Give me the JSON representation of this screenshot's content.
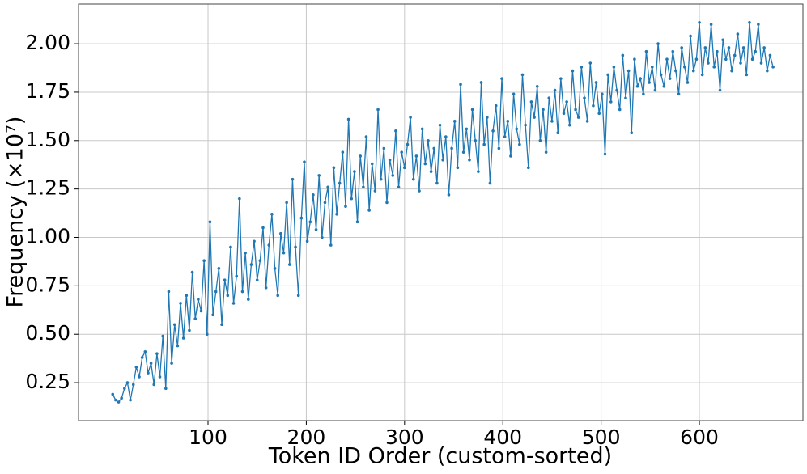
{
  "chart_data": {
    "type": "line",
    "xlabel": "Token ID Order (custom-sorted)",
    "ylabel": "Frequency (×10⁷)",
    "color": "#1f77b4",
    "grid": true,
    "markers": true,
    "xlim": [
      -31.8,
      705.4
    ],
    "ylim": [
      0.054,
      2.205
    ],
    "xticks": [
      100,
      200,
      300,
      400,
      500,
      600
    ],
    "yticks": [
      0.25,
      {
        "value": 0.5,
        "label": "0.50"
      },
      0.75,
      {
        "value": 1,
        "label": "1.00"
      },
      1.25,
      {
        "value": 1.5,
        "label": "1.50"
      },
      1.75,
      {
        "value": 2,
        "label": "2.00"
      }
    ],
    "x": [
      3,
      6,
      9,
      12,
      15,
      18,
      21,
      24,
      27,
      30,
      33,
      36,
      39,
      42,
      45,
      48,
      51,
      54,
      57,
      60,
      63,
      66,
      69,
      72,
      75,
      78,
      81,
      84,
      87,
      90,
      93,
      96,
      99,
      102,
      105,
      108,
      111,
      114,
      117,
      120,
      123,
      126,
      129,
      132,
      135,
      138,
      141,
      144,
      147,
      150,
      153,
      156,
      159,
      162,
      165,
      168,
      171,
      174,
      177,
      180,
      183,
      186,
      189,
      192,
      195,
      198,
      201,
      204,
      207,
      210,
      213,
      216,
      219,
      222,
      225,
      228,
      231,
      234,
      237,
      240,
      243,
      246,
      249,
      252,
      255,
      258,
      261,
      264,
      267,
      270,
      273,
      276,
      279,
      282,
      285,
      288,
      291,
      294,
      297,
      300,
      303,
      306,
      309,
      312,
      315,
      318,
      321,
      324,
      327,
      330,
      333,
      336,
      339,
      342,
      345,
      348,
      351,
      354,
      357,
      360,
      363,
      366,
      369,
      372,
      375,
      378,
      381,
      384,
      387,
      390,
      393,
      396,
      399,
      402,
      405,
      408,
      411,
      414,
      417,
      420,
      423,
      426,
      429,
      432,
      435,
      438,
      441,
      444,
      447,
      450,
      453,
      456,
      459,
      462,
      465,
      468,
      471,
      474,
      477,
      480,
      483,
      486,
      489,
      492,
      495,
      498,
      501,
      504,
      507,
      510,
      513,
      516,
      519,
      522,
      525,
      528,
      531,
      534,
      537,
      540,
      543,
      546,
      549,
      552,
      555,
      558,
      561,
      564,
      567,
      570,
      573,
      576,
      579,
      582,
      585,
      588,
      591,
      594,
      597,
      600,
      603,
      606,
      609,
      612,
      615,
      618,
      621,
      624,
      627,
      630,
      633,
      636,
      639,
      642,
      645,
      648,
      651,
      654,
      657,
      660,
      663,
      666,
      669,
      672,
      675
    ],
    "values": [
      0.19,
      0.16,
      0.15,
      0.17,
      0.22,
      0.25,
      0.16,
      0.24,
      0.33,
      0.28,
      0.38,
      0.41,
      0.3,
      0.35,
      0.24,
      0.4,
      0.28,
      0.49,
      0.22,
      0.72,
      0.35,
      0.55,
      0.44,
      0.66,
      0.48,
      0.7,
      0.52,
      0.82,
      0.58,
      0.68,
      0.62,
      0.88,
      0.5,
      1.08,
      0.6,
      0.72,
      0.84,
      0.55,
      0.78,
      0.7,
      0.95,
      0.66,
      0.8,
      1.2,
      0.72,
      0.92,
      0.68,
      0.86,
      0.98,
      0.78,
      0.88,
      1.05,
      0.74,
      0.96,
      1.12,
      0.84,
      0.7,
      1.02,
      0.92,
      1.18,
      0.86,
      1.3,
      0.95,
      0.7,
      1.1,
      1.39,
      0.98,
      1.08,
      1.22,
      1.04,
      1.32,
      1.0,
      1.18,
      1.26,
      0.96,
      1.36,
      1.12,
      1.28,
      1.44,
      1.16,
      1.61,
      1.2,
      1.34,
      1.08,
      1.42,
      1.26,
      1.52,
      1.14,
      1.38,
      1.24,
      1.66,
      1.3,
      1.46,
      1.18,
      1.4,
      1.32,
      1.55,
      1.26,
      1.44,
      1.36,
      1.48,
      1.62,
      1.3,
      1.42,
      1.24,
      1.56,
      1.38,
      1.5,
      1.34,
      1.46,
      1.28,
      1.58,
      1.4,
      1.52,
      1.22,
      1.46,
      1.6,
      1.36,
      1.79,
      1.44,
      1.56,
      1.4,
      1.66,
      1.5,
      1.34,
      1.8,
      1.48,
      1.62,
      1.28,
      1.55,
      1.68,
      1.46,
      1.82,
      1.52,
      1.6,
      1.42,
      1.74,
      1.56,
      1.48,
      1.84,
      1.58,
      1.36,
      1.7,
      1.62,
      1.78,
      1.5,
      1.66,
      1.44,
      1.72,
      1.6,
      1.76,
      1.54,
      1.82,
      1.64,
      1.7,
      1.58,
      1.86,
      1.66,
      1.62,
      1.88,
      1.72,
      1.6,
      1.9,
      1.68,
      1.8,
      1.64,
      1.74,
      1.43,
      1.84,
      1.7,
      1.88,
      1.76,
      1.66,
      1.94,
      1.72,
      1.86,
      1.54,
      1.92,
      1.78,
      1.82,
      1.74,
      1.96,
      1.8,
      1.88,
      1.76,
      2.0,
      1.84,
      1.78,
      1.92,
      1.82,
      1.96,
      1.86,
      1.74,
      1.98,
      1.88,
      1.8,
      2.04,
      1.86,
      1.92,
      2.11,
      1.84,
      1.98,
      1.9,
      2.1,
      1.88,
      1.96,
      1.76,
      2.02,
      1.92,
      1.98,
      1.86,
      1.94,
      2.05,
      1.9,
      1.98,
      1.84,
      2.11,
      1.92,
      1.96,
      2.1,
      1.9,
      1.98,
      1.86,
      1.94,
      1.88
    ]
  }
}
